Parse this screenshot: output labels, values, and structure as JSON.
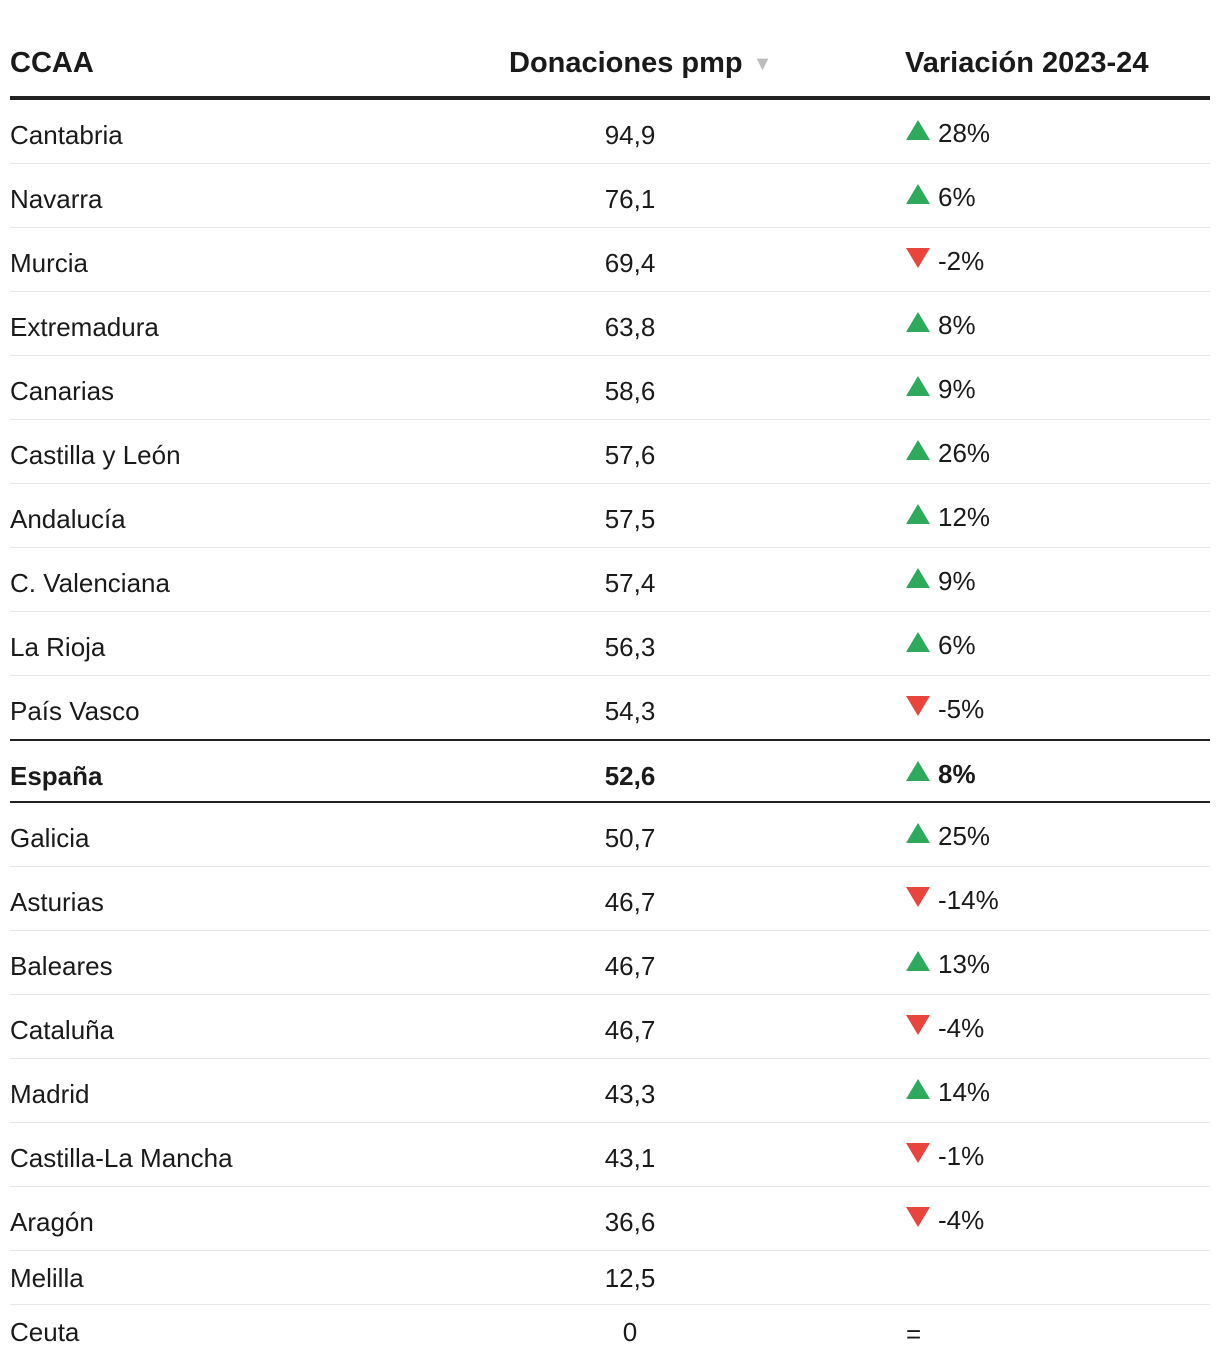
{
  "table": {
    "headers": {
      "ccaa": "CCAA",
      "donaciones": "Donaciones pmp",
      "sort_icon": "▼",
      "variacion": "Variación 2023-24"
    },
    "rows": [
      {
        "name": "Cantabria",
        "value": "94,9",
        "trend": "up",
        "change": "28%"
      },
      {
        "name": "Navarra",
        "value": "76,1",
        "trend": "up",
        "change": "6%"
      },
      {
        "name": "Murcia",
        "value": "69,4",
        "trend": "down",
        "change": "-2%"
      },
      {
        "name": "Extremadura",
        "value": "63,8",
        "trend": "up",
        "change": "8%"
      },
      {
        "name": "Canarias",
        "value": "58,6",
        "trend": "up",
        "change": "9%"
      },
      {
        "name": "Castilla y León",
        "value": "57,6",
        "trend": "up",
        "change": "26%"
      },
      {
        "name": "Andalucía",
        "value": "57,5",
        "trend": "up",
        "change": "12%"
      },
      {
        "name": "C. Valenciana",
        "value": "57,4",
        "trend": "up",
        "change": "9%"
      },
      {
        "name": "La Rioja",
        "value": "56,3",
        "trend": "up",
        "change": "6%"
      },
      {
        "name": "País Vasco",
        "value": "54,3",
        "trend": "down",
        "change": "-5%"
      },
      {
        "name": "España",
        "value": "52,6",
        "trend": "up",
        "change": "8%",
        "total": true
      },
      {
        "name": "Galicia",
        "value": "50,7",
        "trend": "up",
        "change": "25%"
      },
      {
        "name": "Asturias",
        "value": "46,7",
        "trend": "down",
        "change": "-14%"
      },
      {
        "name": "Baleares",
        "value": "46,7",
        "trend": "up",
        "change": "13%"
      },
      {
        "name": "Cataluña",
        "value": "46,7",
        "trend": "down",
        "change": "-4%"
      },
      {
        "name": "Madrid",
        "value": "43,3",
        "trend": "up",
        "change": "14%"
      },
      {
        "name": "Castilla-La Mancha",
        "value": "43,1",
        "trend": "down",
        "change": "-1%"
      },
      {
        "name": "Aragón",
        "value": "36,6",
        "trend": "down",
        "change": "-4%"
      },
      {
        "name": "Melilla",
        "value": "12,5",
        "trend": "none",
        "change": ""
      },
      {
        "name": "Ceuta",
        "value": "0",
        "trend": "none",
        "change": "="
      }
    ]
  },
  "colors": {
    "up": "#2eaa5c",
    "down": "#e8453c"
  }
}
